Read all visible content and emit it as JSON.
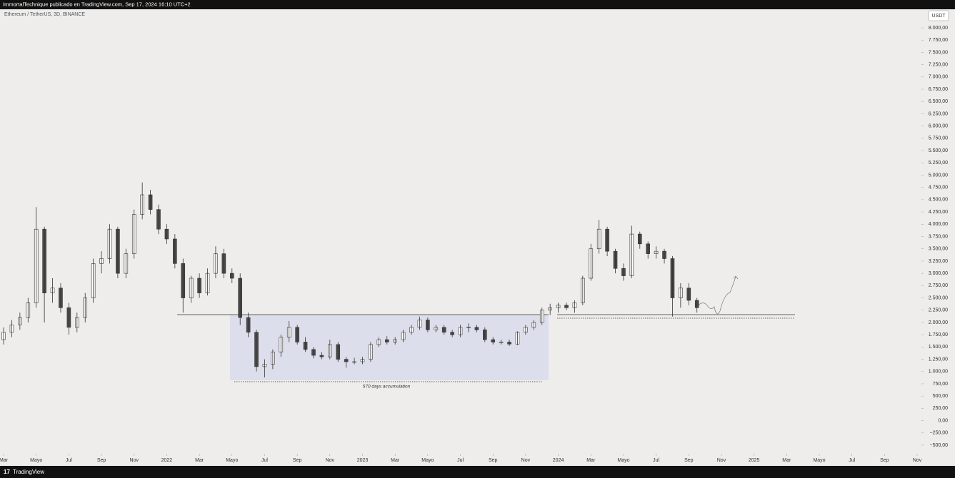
{
  "header": "ImmortalTechnique publicado en TradingView.com, Sep 17, 2024 16:10 UTC+2",
  "footer": "TradingView",
  "chart_data": {
    "type": "candlestick",
    "title": "Ethereum / TetherUS, 3D, BINANCE",
    "currency": "USDT",
    "annotation": "570 days accumulation",
    "up_color": "#ffffff",
    "down_color": "#4a4a4a",
    "wick_color": "#333333",
    "x": [
      0,
      0.5,
      1,
      1.5,
      2,
      2.5,
      3,
      3.5,
      4,
      4.5,
      5,
      5.5,
      6,
      6.5,
      7,
      7.5,
      8,
      8.5,
      9,
      9.5,
      10,
      10.5,
      11,
      11.5,
      12,
      12.5,
      13,
      13.5,
      14,
      14.5,
      15,
      15.5,
      16,
      16.5,
      17,
      17.5,
      18,
      18.5,
      19,
      19.5,
      20,
      20.5,
      21,
      21.5,
      22,
      22.5,
      23,
      23.5,
      24,
      24.5,
      25,
      25.5,
      26,
      26.5,
      27,
      27.5,
      28,
      28.5,
      29,
      29.5,
      30,
      30.5,
      31,
      31.5,
      32,
      32.5,
      33,
      33.5,
      34,
      34.5,
      35,
      35.5,
      36,
      36.5,
      37,
      37.5,
      38,
      38.5,
      39,
      39.5,
      40,
      40.5,
      41,
      41.5,
      42,
      42.5
    ],
    "open": [
      1650,
      1800,
      1950,
      2100,
      2400,
      3900,
      2600,
      2700,
      2300,
      1900,
      2100,
      2500,
      3200,
      3300,
      3900,
      3000,
      3400,
      4200,
      4600,
      4300,
      3900,
      3700,
      3200,
      2500,
      2900,
      2600,
      3000,
      3400,
      3000,
      2900,
      2100,
      1800,
      1100,
      1150,
      1400,
      1700,
      1900,
      1600,
      1450,
      1330,
      1300,
      1550,
      1250,
      1200,
      1200,
      1250,
      1550,
      1650,
      1600,
      1650,
      1800,
      1900,
      2050,
      1850,
      1900,
      1800,
      1750,
      1900,
      1900,
      1850,
      1650,
      1600,
      1600,
      1560,
      1800,
      1900,
      2000,
      2250,
      2300,
      2350,
      2300,
      2400,
      2900,
      3500,
      3900,
      3450,
      3100,
      2950,
      3800,
      3600,
      3400,
      3450,
      3300,
      2500,
      2700,
      2450
    ],
    "high": [
      1900,
      2050,
      2200,
      2500,
      4350,
      3950,
      2900,
      2800,
      2400,
      2200,
      2600,
      3300,
      3450,
      4000,
      3950,
      3500,
      4300,
      4850,
      4700,
      4400,
      4000,
      3800,
      3300,
      2950,
      3000,
      3100,
      3550,
      3500,
      3100,
      3000,
      2200,
      1850,
      1250,
      1450,
      1750,
      2030,
      1950,
      1700,
      1500,
      1400,
      1650,
      1600,
      1300,
      1280,
      1300,
      1600,
      1700,
      1720,
      1700,
      1850,
      1950,
      2120,
      2100,
      1950,
      1950,
      1850,
      1950,
      1980,
      1950,
      1900,
      1700,
      1650,
      1650,
      1820,
      1950,
      2050,
      2300,
      2380,
      2400,
      2400,
      2450,
      2950,
      3600,
      4090,
      3950,
      3500,
      3200,
      3970,
      3850,
      3650,
      3550,
      3500,
      3350,
      2800,
      2800,
      2500
    ],
    "low": [
      1550,
      1700,
      1850,
      2000,
      2300,
      2000,
      2400,
      2200,
      1750,
      1800,
      2000,
      2400,
      3000,
      3200,
      2900,
      2900,
      3300,
      4100,
      4200,
      3800,
      3600,
      3100,
      2200,
      2400,
      2500,
      2550,
      2900,
      2900,
      2800,
      1950,
      1700,
      1000,
      880,
      1050,
      1300,
      1600,
      1550,
      1400,
      1270,
      1250,
      1250,
      1200,
      1080,
      1150,
      1150,
      1200,
      1500,
      1550,
      1550,
      1600,
      1750,
      1850,
      1800,
      1800,
      1750,
      1700,
      1700,
      1800,
      1800,
      1600,
      1550,
      1550,
      1520,
      1540,
      1750,
      1850,
      1950,
      2150,
      2200,
      2250,
      2200,
      2350,
      2850,
      3400,
      3350,
      3000,
      2850,
      2900,
      3500,
      3300,
      3300,
      3200,
      2120,
      2300,
      2350,
      2200
    ],
    "close": [
      1800,
      1950,
      2100,
      2400,
      3900,
      2600,
      2700,
      2300,
      1900,
      2100,
      2500,
      3200,
      3300,
      3900,
      3000,
      3400,
      4200,
      4600,
      4300,
      3900,
      3700,
      3200,
      2500,
      2900,
      2600,
      3000,
      3400,
      3000,
      2900,
      2100,
      1800,
      1100,
      1150,
      1400,
      1700,
      1900,
      1600,
      1450,
      1330,
      1300,
      1550,
      1250,
      1200,
      1200,
      1250,
      1550,
      1650,
      1600,
      1650,
      1800,
      1900,
      2050,
      1850,
      1900,
      1800,
      1750,
      1900,
      1900,
      1850,
      1650,
      1600,
      1600,
      1560,
      1800,
      1900,
      2000,
      2250,
      2300,
      2350,
      2300,
      2400,
      2900,
      3500,
      3900,
      3450,
      3100,
      2950,
      3800,
      3600,
      3400,
      3450,
      3300,
      2500,
      2700,
      2450,
      2300
    ],
    "xlim": [
      -0.22,
      56.26
    ],
    "ylim": [
      -616,
      8378
    ],
    "xticks": [
      {
        "value": 0,
        "label": "Mar"
      },
      {
        "value": 2,
        "label": "Mayo"
      },
      {
        "value": 4,
        "label": "Jul"
      },
      {
        "value": 6,
        "label": "Sep"
      },
      {
        "value": 8,
        "label": "Nov"
      },
      {
        "value": 10,
        "label": "2022"
      },
      {
        "value": 12,
        "label": "Mar"
      },
      {
        "value": 14,
        "label": "Mayo"
      },
      {
        "value": 16,
        "label": "Jul"
      },
      {
        "value": 18,
        "label": "Sep"
      },
      {
        "value": 20,
        "label": "Nov"
      },
      {
        "value": 22,
        "label": "2023"
      },
      {
        "value": 24,
        "label": "Mar"
      },
      {
        "value": 26,
        "label": "Mayo"
      },
      {
        "value": 28,
        "label": "Jul"
      },
      {
        "value": 30,
        "label": "Sep"
      },
      {
        "value": 32,
        "label": "Nov"
      },
      {
        "value": 34,
        "label": "2024"
      },
      {
        "value": 36,
        "label": "Mar"
      },
      {
        "value": 38,
        "label": "Mayo"
      },
      {
        "value": 40,
        "label": "Jul"
      },
      {
        "value": 42,
        "label": "Sep"
      },
      {
        "value": 44,
        "label": "Nov"
      },
      {
        "value": 46,
        "label": "2025"
      },
      {
        "value": 48,
        "label": "Mar"
      },
      {
        "value": 50,
        "label": "Mayo"
      },
      {
        "value": 52,
        "label": "Jul"
      },
      {
        "value": 54,
        "label": "Sep"
      },
      {
        "value": 56,
        "label": "Nov"
      }
    ],
    "yticks": [
      {
        "value": -500,
        "label": "−500,00"
      },
      {
        "value": -250,
        "label": "−250,00"
      },
      {
        "value": 0,
        "label": "0,00"
      },
      {
        "value": 250,
        "label": "250,00"
      },
      {
        "value": 500,
        "label": "500,00"
      },
      {
        "value": 750,
        "label": "750,00"
      },
      {
        "value": 1000,
        "label": "1.000,00"
      },
      {
        "value": 1250,
        "label": "1.250,00"
      },
      {
        "value": 1500,
        "label": "1.500,00"
      },
      {
        "value": 1750,
        "label": "1.750,00"
      },
      {
        "value": 2000,
        "label": "2.000,00"
      },
      {
        "value": 2250,
        "label": "2.250,00"
      },
      {
        "value": 2500,
        "label": "2.500,00"
      },
      {
        "value": 2750,
        "label": "2.750,00"
      },
      {
        "value": 3000,
        "label": "3.000,00"
      },
      {
        "value": 3250,
        "label": "3.250,00"
      },
      {
        "value": 3500,
        "label": "3.500,00"
      },
      {
        "value": 3750,
        "label": "3.750,00"
      },
      {
        "value": 4000,
        "label": "4.000,00"
      },
      {
        "value": 4250,
        "label": "4.250,00"
      },
      {
        "value": 4500,
        "label": "4.500,00"
      },
      {
        "value": 4750,
        "label": "4.750,00"
      },
      {
        "value": 5000,
        "label": "5.000,00"
      },
      {
        "value": 5250,
        "label": "5.250,00"
      },
      {
        "value": 5500,
        "label": "5.500,00"
      },
      {
        "value": 5750,
        "label": "5.750,00"
      },
      {
        "value": 6000,
        "label": "6.000,00"
      },
      {
        "value": 6250,
        "label": "6.250,00"
      },
      {
        "value": 6500,
        "label": "6.500,00"
      },
      {
        "value": 6750,
        "label": "6.750,00"
      },
      {
        "value": 7000,
        "label": "7.000,00"
      },
      {
        "value": 7250,
        "label": "7.250,00"
      },
      {
        "value": 7500,
        "label": "7.500,00"
      },
      {
        "value": 7750,
        "label": "7.750,00"
      },
      {
        "value": 8000,
        "label": "8.000,00"
      }
    ]
  }
}
